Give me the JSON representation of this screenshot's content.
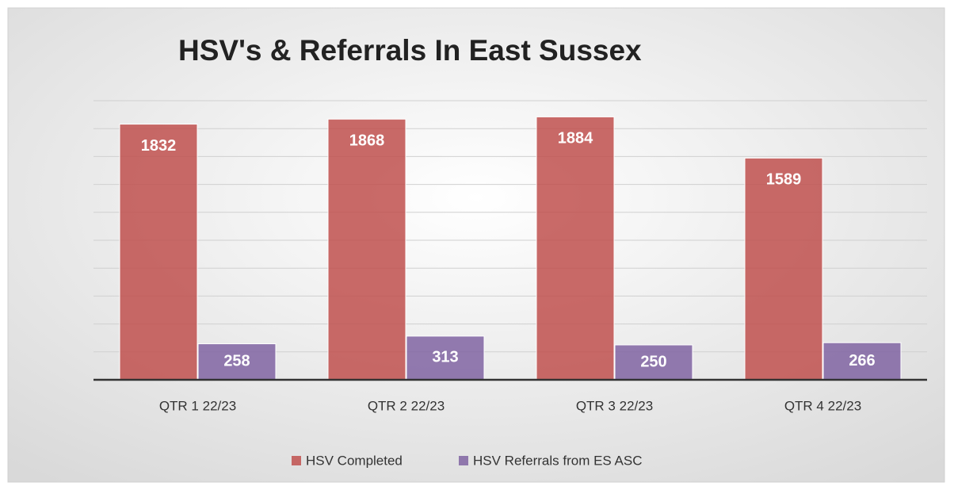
{
  "chart_data": {
    "type": "bar",
    "title": "HSV's & Referrals In East Sussex",
    "categories": [
      "QTR 1 22/23",
      "QTR 2 22/23",
      "QTR 3 22/23",
      "QTR 4 22/23"
    ],
    "series": [
      {
        "name": "HSV Completed",
        "color": "#c0504d",
        "values": [
          1832,
          1868,
          1884,
          1589
        ]
      },
      {
        "name": "HSV Referrals from ES ASC",
        "color": "#8064a2",
        "values": [
          258,
          313,
          250,
          266
        ]
      }
    ],
    "ylim": [
      0,
      2000
    ],
    "yticks": [
      0,
      200,
      400,
      600,
      800,
      1000,
      1200,
      1400,
      1600,
      1800,
      2000
    ],
    "grid": true,
    "legend": "bottom"
  }
}
